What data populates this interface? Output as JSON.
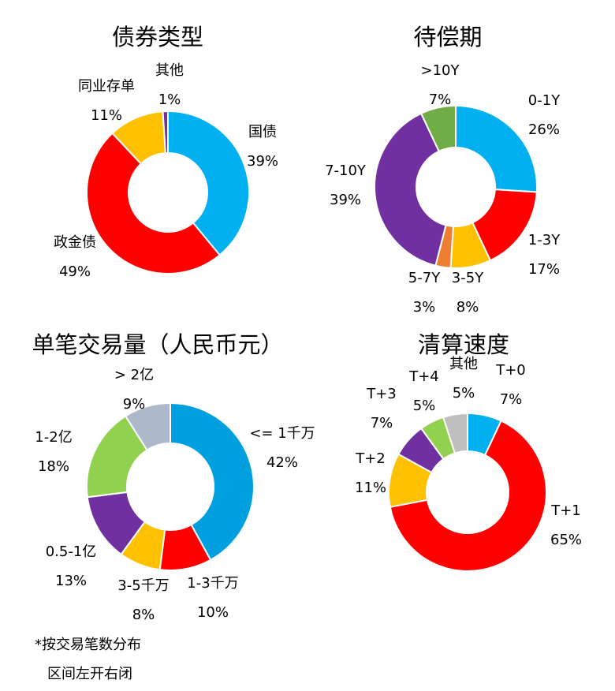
{
  "chart_data": [
    {
      "type": "pie",
      "title": "债券类型",
      "categories": [
        "国债",
        "政金债",
        "同业存单",
        "其他"
      ],
      "values": [
        39,
        49,
        11,
        1
      ],
      "labels": [
        "39%",
        "49%",
        "11%",
        "1%"
      ],
      "colors": [
        "#00B0F0",
        "#FF0000",
        "#FFC000",
        "#7030A0"
      ]
    },
    {
      "type": "pie",
      "title": "待偿期",
      "categories": [
        "0-1Y",
        "1-3Y",
        "3-5Y",
        "5-7Y",
        "7-10Y",
        ">10Y"
      ],
      "values": [
        26,
        17,
        8,
        3,
        39,
        7
      ],
      "labels": [
        "26%",
        "17%",
        "8%",
        "3%",
        "39%",
        "7%"
      ],
      "colors": [
        "#00B0F0",
        "#FF0000",
        "#FFC000",
        "#ED7D31",
        "#7030A0",
        "#70AD47"
      ]
    },
    {
      "type": "pie",
      "title": "单笔交易量（人民币元）",
      "categories": [
        "<= 1千万",
        "1-3千万",
        "3-5千万",
        "0.5-1亿",
        "1-2亿",
        "> 2亿"
      ],
      "values": [
        42,
        10,
        8,
        13,
        18,
        9
      ],
      "labels": [
        "42%",
        "10%",
        "8%",
        "13%",
        "18%",
        "9%"
      ],
      "colors": [
        "#00A0E0",
        "#FF0000",
        "#FFC000",
        "#7030A0",
        "#92D050",
        "#ADB9CA"
      ]
    },
    {
      "type": "pie",
      "title": "清算速度",
      "categories": [
        "T+0",
        "T+1",
        "T+2",
        "T+3",
        "T+4",
        "其他"
      ],
      "values": [
        7,
        65,
        11,
        7,
        5,
        5
      ],
      "labels": [
        "7%",
        "65%",
        "11%",
        "7%",
        "5%",
        "5%"
      ],
      "colors": [
        "#00B0F0",
        "#FF0000",
        "#FFC000",
        "#7030A0",
        "#92D050",
        "#BFBFBF"
      ]
    }
  ],
  "footnote": {
    "line1": "*按交易笔数分布",
    "line2": "区间左开右闭"
  }
}
